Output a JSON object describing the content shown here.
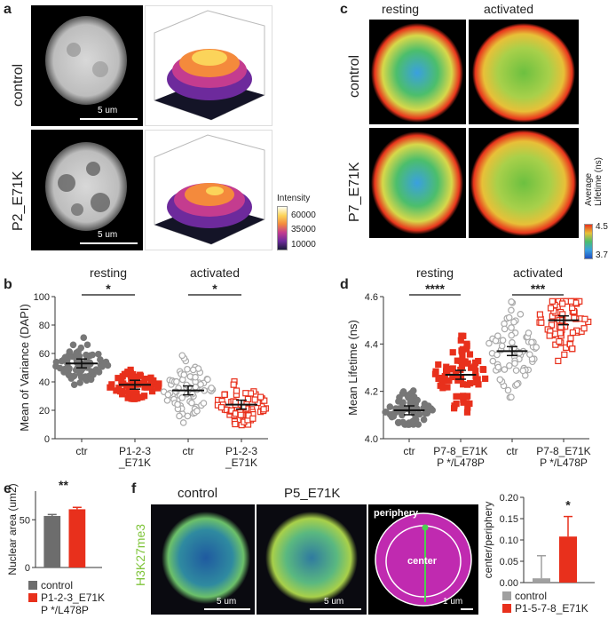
{
  "panel_labels": {
    "a": "a",
    "b": "b",
    "c": "c",
    "d": "d",
    "e": "e",
    "f": "f"
  },
  "panel_a": {
    "rows": [
      "control",
      "P2_E71K"
    ],
    "scale": "5 um",
    "colorbar_title": "Intensity",
    "colorbar_ticks": [
      "60000",
      "35000",
      "10000"
    ]
  },
  "panel_c": {
    "columns": [
      "resting",
      "activated"
    ],
    "rows": [
      "control",
      "P7_E71K"
    ],
    "colorbar_title": "Average\nLifetime (ns)",
    "colorbar_ticks": [
      "4.5",
      "3.7"
    ]
  },
  "panel_f": {
    "columns": [
      "control",
      "P5_E71K"
    ],
    "row_label": "H3K27me3",
    "scale": "5 um",
    "scale_small": "1 um",
    "periphery": "periphery",
    "center": "center"
  },
  "chart_data": [
    {
      "id": "b",
      "type": "scatter",
      "ylabel": "Mean of Variance (DAPI)",
      "ylim": [
        0,
        100
      ],
      "yticks": [
        "0",
        "20",
        "40",
        "60",
        "80",
        "100"
      ],
      "categories": [
        "ctr",
        "P1-2-3\n_E71K",
        "ctr",
        "P1-2-3\n_E71K"
      ],
      "groups": [
        "resting",
        "activated"
      ],
      "significance": [
        "*",
        "*"
      ],
      "means": [
        53,
        38,
        34,
        24
      ],
      "spread": [
        7,
        5,
        10,
        7
      ],
      "point_range": [
        [
          38,
          76
        ],
        [
          28,
          50
        ],
        [
          0,
          60
        ],
        [
          8,
          52
        ]
      ],
      "colors": [
        "#777777",
        "#e8301c",
        "#aaaaaa",
        "#e8301c"
      ],
      "filled": [
        true,
        true,
        false,
        false
      ],
      "markers": [
        "circle",
        "square",
        "circle",
        "square"
      ]
    },
    {
      "id": "d",
      "type": "scatter",
      "ylabel": "Mean Lifetime (ns)",
      "ylim": [
        4.0,
        4.6
      ],
      "yticks": [
        "4.0",
        "4.2",
        "4.4",
        "4.6"
      ],
      "categories": [
        "ctr",
        "P7-8_E71K\nP */L478P",
        "ctr",
        "P7-8_E71K\nP */L478P"
      ],
      "groups": [
        "resting",
        "activated"
      ],
      "significance": [
        "****",
        "***"
      ],
      "means": [
        4.12,
        4.27,
        4.37,
        4.5
      ],
      "spread": [
        0.04,
        0.08,
        0.09,
        0.08
      ],
      "point_range": [
        [
          4.06,
          4.29
        ],
        [
          4.05,
          4.5
        ],
        [
          4.0,
          4.58
        ],
        [
          4.15,
          4.58
        ]
      ],
      "colors": [
        "#777777",
        "#e8301c",
        "#aaaaaa",
        "#e8301c"
      ],
      "filled": [
        true,
        true,
        false,
        false
      ],
      "markers": [
        "circle",
        "square",
        "circle",
        "square"
      ]
    },
    {
      "id": "e",
      "type": "bar",
      "ylabel": "Nuclear area (um2)",
      "ylim": [
        0,
        80
      ],
      "yticks": [
        "0",
        "50"
      ],
      "values": [
        54,
        61
      ],
      "errors": [
        1.5,
        2
      ],
      "significance": "**",
      "colors": [
        "#6d6d6d",
        "#e8301c"
      ],
      "legend": [
        "control",
        "P1-2-3_E71K\nP */L478P"
      ]
    },
    {
      "id": "f",
      "type": "bar",
      "ylabel": "center/periphery",
      "ylim": [
        0,
        0.2
      ],
      "yticks": [
        "0.00",
        "0.05",
        "0.10",
        "0.15",
        "0.20"
      ],
      "values": [
        0.01,
        0.108
      ],
      "errors": [
        0.053,
        0.047
      ],
      "significance": "*",
      "colors": [
        "#a0a0a0",
        "#e8301c"
      ],
      "legend": [
        "control",
        "P1-5-7-8_E71K"
      ]
    }
  ]
}
